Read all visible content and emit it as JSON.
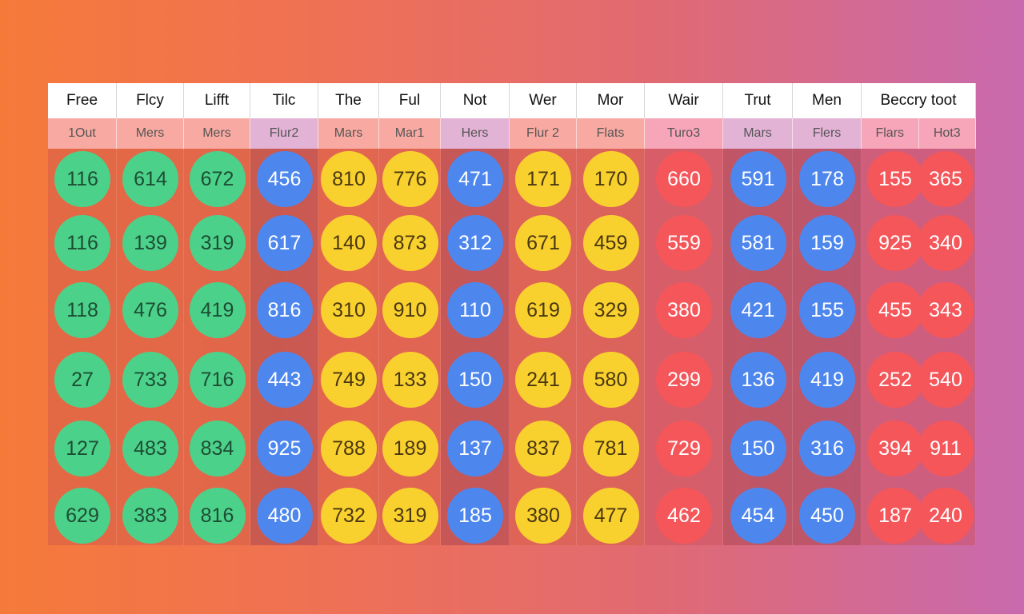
{
  "colors": {
    "green": "#4cd18a",
    "blue": "#4d87ee",
    "yellow": "#f9d12f",
    "red": "#f4565a",
    "sub_green": "#f8aaa2",
    "sub_purple": "#e3b3d6",
    "sub_red": "#f7a5b8"
  },
  "columns": [
    {
      "header": "Free",
      "sub": [
        "1Out"
      ],
      "color": "green",
      "values": [
        "116",
        "116",
        "118",
        "27",
        "127",
        "629"
      ]
    },
    {
      "header": "Flcy",
      "sub": [
        "Mers"
      ],
      "color": "green",
      "values": [
        "614",
        "139",
        "476",
        "733",
        "483",
        "383"
      ]
    },
    {
      "header": "Lifft",
      "sub": [
        "Mers"
      ],
      "color": "green",
      "values": [
        "672",
        "319",
        "419",
        "716",
        "834",
        "816"
      ]
    },
    {
      "header": "Tilc",
      "sub": [
        "Flur2"
      ],
      "color": "blue",
      "values": [
        "456",
        "617",
        "816",
        "443",
        "925",
        "480"
      ]
    },
    {
      "header": "The",
      "sub": [
        "Mars"
      ],
      "color": "yellow",
      "values": [
        "810",
        "140",
        "310",
        "749",
        "788",
        "732"
      ]
    },
    {
      "header": "Ful",
      "sub": [
        "Mar1"
      ],
      "color": "yellow",
      "values": [
        "776",
        "873",
        "910",
        "133",
        "189",
        "319"
      ]
    },
    {
      "header": "Not",
      "sub": [
        "Hers"
      ],
      "color": "blue",
      "values": [
        "471",
        "312",
        "110",
        "150",
        "137",
        "185"
      ]
    },
    {
      "header": "Wer",
      "sub": [
        "Flur 2"
      ],
      "color": "yellow",
      "values": [
        "171",
        "671",
        "619",
        "241",
        "837",
        "380"
      ]
    },
    {
      "header": "Mor",
      "sub": [
        "Flats"
      ],
      "color": "yellow",
      "values": [
        "170",
        "459",
        "329",
        "580",
        "781",
        "477"
      ]
    },
    {
      "header": "Wair",
      "sub": [
        "Turo3"
      ],
      "color": "red",
      "values": [
        "660",
        "559",
        "380",
        "299",
        "729",
        "462"
      ]
    },
    {
      "header": "Trut",
      "sub": [
        "Mars"
      ],
      "color": "blue",
      "values": [
        "591",
        "581",
        "421",
        "136",
        "150",
        "454"
      ]
    },
    {
      "header": "Men",
      "sub": [
        "Flers"
      ],
      "color": "blue",
      "values": [
        "178",
        "159",
        "155",
        "419",
        "316",
        "450"
      ]
    },
    {
      "header": "Beccry toot",
      "sub": [
        "Flars",
        "Hot3"
      ],
      "color": "red",
      "values": [
        "155",
        "925",
        "455",
        "252",
        "394",
        "187"
      ],
      "values2": [
        "365",
        "340",
        "343",
        "540",
        "911",
        "240"
      ]
    }
  ]
}
